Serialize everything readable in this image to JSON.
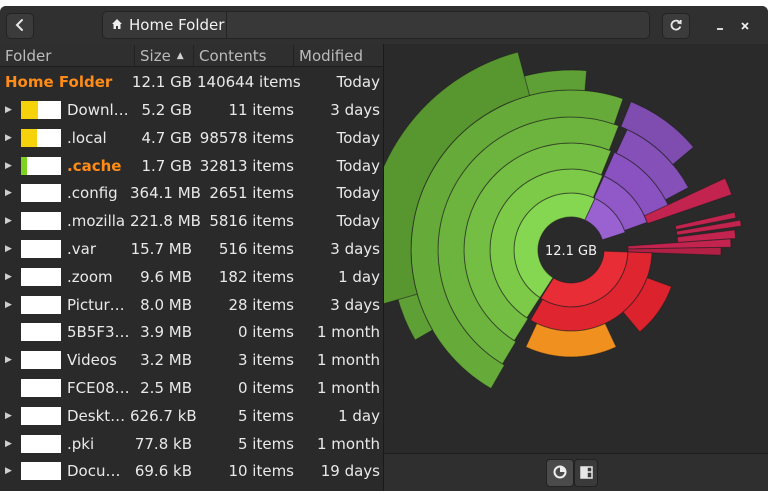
{
  "header": {
    "path_label": "Home Folder"
  },
  "columns": [
    "Folder",
    "Size",
    "Contents",
    "Modified"
  ],
  "root": {
    "name": "Home Folder",
    "size": "12.1 GB",
    "contents": "140644 items",
    "modified": "Today"
  },
  "rows": [
    {
      "name": "Downl…",
      "size": "5.2 GB",
      "contents": "11 items",
      "modified": "3 days",
      "fill": 0.43,
      "color": "#f5d20a",
      "expandable": true,
      "highlight": false
    },
    {
      "name": ".local",
      "size": "4.7 GB",
      "contents": "98578 items",
      "modified": "Today",
      "fill": 0.39,
      "color": "#f5d20a",
      "expandable": true,
      "highlight": false
    },
    {
      "name": ".cache",
      "size": "1.7 GB",
      "contents": "32813 items",
      "modified": "Today",
      "fill": 0.14,
      "color": "#7ed321",
      "expandable": true,
      "highlight": true
    },
    {
      "name": ".config",
      "size": "364.1 MB",
      "contents": "2651 items",
      "modified": "Today",
      "fill": 0,
      "color": "#ffffff",
      "expandable": true,
      "highlight": false
    },
    {
      "name": ".mozilla",
      "size": "221.8 MB",
      "contents": "5816 items",
      "modified": "Today",
      "fill": 0,
      "color": "#ffffff",
      "expandable": true,
      "highlight": false
    },
    {
      "name": ".var",
      "size": "15.7 MB",
      "contents": "516 items",
      "modified": "3 days",
      "fill": 0,
      "color": "#ffffff",
      "expandable": true,
      "highlight": false
    },
    {
      "name": ".zoom",
      "size": "9.6 MB",
      "contents": "182 items",
      "modified": "1 day",
      "fill": 0,
      "color": "#ffffff",
      "expandable": true,
      "highlight": false
    },
    {
      "name": "Pictur…",
      "size": "8.0 MB",
      "contents": "28 items",
      "modified": "3 days",
      "fill": 0,
      "color": "#ffffff",
      "expandable": true,
      "highlight": false
    },
    {
      "name": "5B5F3…",
      "size": "3.9 MB",
      "contents": "0 items",
      "modified": "1 month",
      "fill": 0,
      "color": "#ffffff",
      "expandable": false,
      "highlight": false
    },
    {
      "name": "Videos",
      "size": "3.2 MB",
      "contents": "3 items",
      "modified": "1 month",
      "fill": 0,
      "color": "#ffffff",
      "expandable": true,
      "highlight": false
    },
    {
      "name": "FCE08…",
      "size": "2.5 MB",
      "contents": "0 items",
      "modified": "1 month",
      "fill": 0,
      "color": "#ffffff",
      "expandable": false,
      "highlight": false
    },
    {
      "name": "Deskt…",
      "size": "626.7 kB",
      "contents": "5 items",
      "modified": "1 day",
      "fill": 0,
      "color": "#ffffff",
      "expandable": true,
      "highlight": false
    },
    {
      "name": ".pki",
      "size": "77.8 kB",
      "contents": "5 items",
      "modified": "1 month",
      "fill": 0,
      "color": "#ffffff",
      "expandable": true,
      "highlight": false
    },
    {
      "name": "Docu…",
      "size": "69.6 kB",
      "contents": "10 items",
      "modified": "19 days",
      "fill": 0,
      "color": "#ffffff",
      "expandable": true,
      "highlight": false
    }
  ],
  "ring_chart": {
    "center_label": "12.1 GB",
    "colors": {
      "green": "#76c043",
      "purple": "#8e56c2",
      "red": "#e8222e",
      "orange": "#f0901f",
      "magenta": "#c2244f"
    }
  },
  "icons": {
    "back": "chevron-left-icon",
    "home": "home-icon",
    "refresh": "refresh-icon",
    "minimize": "minimize-icon",
    "close": "close-icon",
    "ring_view": "ring-chart-icon",
    "tree_view": "treemap-icon"
  }
}
